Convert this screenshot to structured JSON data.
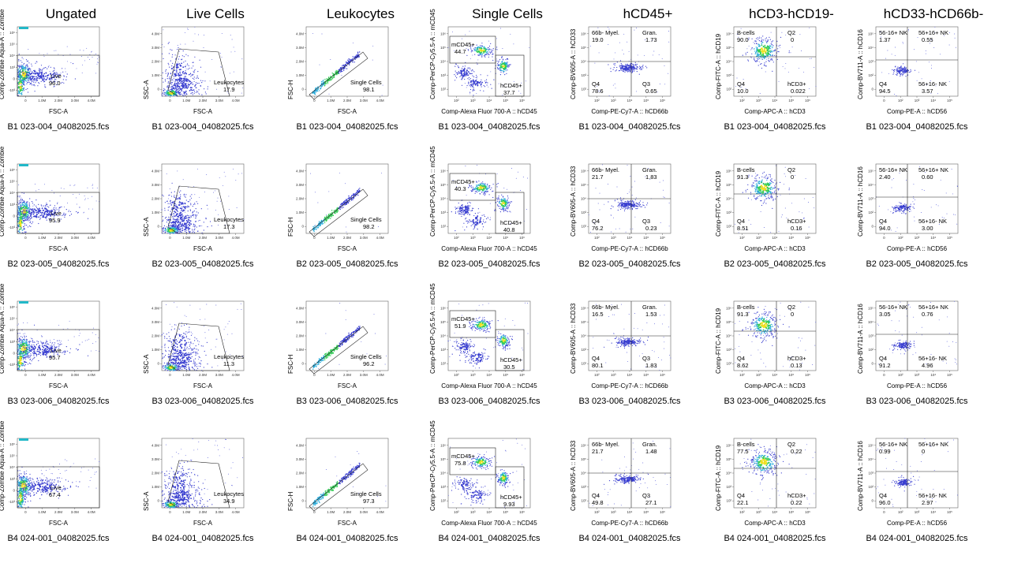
{
  "chart_data": {
    "type": "scatter",
    "description_type": "flow_cytometry_gating_grid",
    "columns": [
      {
        "title": "Ungated",
        "xlabel": "FSC-A",
        "ylabel": "Comp-Zombie Aqua-A :: Zombie",
        "kind": "live",
        "xticks": [
          "0",
          "1.0M",
          "2.0M",
          "3.0M",
          "4.0M"
        ],
        "yticks": [
          "-10³",
          "0",
          "10³",
          "10⁴",
          "10⁵",
          "10⁶"
        ]
      },
      {
        "title": "Live Cells",
        "xlabel": "FSC-A",
        "ylabel": "SSC-A",
        "kind": "leuko",
        "xticks": [
          "0",
          "1.0M",
          "2.0M",
          "3.0M",
          "4.0M"
        ],
        "yticks": [
          "0",
          "1.0M",
          "2.0M",
          "3.0M",
          "4.0M"
        ]
      },
      {
        "title": "Leukocytes",
        "xlabel": "FSC-A",
        "ylabel": "FSC-H",
        "kind": "single",
        "xticks": [
          "0",
          "1.0M",
          "2.0M",
          "3.0M",
          "4.0M"
        ],
        "yticks": [
          "0",
          "1.0M",
          "2.0M",
          "3.0M",
          "4.0M"
        ]
      },
      {
        "title": "Single Cells",
        "xlabel": "Comp-Alexa Fluor 700-A :: hCD45",
        "ylabel": "Comp-PerCP-Cy5.5-A :: mCD45",
        "kind": "cd45",
        "xticks": [
          "10²",
          "10³",
          "10⁴",
          "10⁵",
          "10⁶"
        ],
        "yticks": [
          "10²",
          "10³",
          "10⁴",
          "10⁵",
          "10⁶"
        ]
      },
      {
        "title": "hCD45+",
        "xlabel": "Comp-PE-Cy7-A :: hCD66b",
        "ylabel": "Comp-BV605-A :: hCD33",
        "kind": "quad33",
        "xticks": [
          "10²",
          "10³",
          "10⁴",
          "10⁵",
          "10⁶"
        ],
        "yticks": [
          "10²",
          "10³",
          "10⁴",
          "10⁵",
          "10⁶"
        ]
      },
      {
        "title": "hCD3-hCD19-",
        "xlabel": "Comp-APC-A :: hCD3",
        "ylabel": "Comp-FITC-A :: hCD19",
        "kind": "quad19",
        "xticks": [
          "10²",
          "10³",
          "10⁴",
          "10⁵",
          "10⁶"
        ],
        "yticks": [
          "10²",
          "10³",
          "10⁴",
          "10⁵",
          "10⁶"
        ]
      },
      {
        "title": "hCD33-hCD66b-",
        "xlabel": "Comp-PE-A :: hCD56",
        "ylabel": "Comp-BV711-A :: hCD16",
        "kind": "quad16",
        "xticks": [
          "0",
          "10²",
          "10³",
          "10⁴",
          "10⁵"
        ],
        "yticks": [
          "0",
          "10²",
          "10³",
          "10⁴",
          "10⁵"
        ]
      }
    ],
    "gate_names": {
      "live": "Live",
      "leuko": "Leukocytes",
      "single": "Single Cells",
      "cd45": [
        "mCD45+",
        "hCD45+"
      ],
      "quad33": [
        "66b- Myel.",
        "Gran.",
        "Q4",
        "Q3"
      ],
      "quad19": [
        "B-cells",
        "Q2",
        "Q4",
        "hCD3+"
      ],
      "quad16": [
        "56-16+ NK",
        "56+16+ NK",
        "Q4",
        "56+16- NK"
      ]
    },
    "rows": [
      {
        "file": "B1 023-004_04082025.fcs",
        "values": {
          "live": "96.0",
          "leuko": "17.9",
          "single": "98.1",
          "cd45": [
            "44.7",
            "37.7"
          ],
          "quad33": [
            "19.0",
            "1.73",
            "78.6",
            "0.65"
          ],
          "quad19": [
            "90.0",
            "0",
            "10.0",
            "0.022"
          ],
          "quad16": [
            "1.37",
            "0.55",
            "94.5",
            "3.57"
          ]
        }
      },
      {
        "file": "B2 023-005_04082025.fcs",
        "values": {
          "live": "95.9",
          "leuko": "17.3",
          "single": "98.2",
          "cd45": [
            "40.3",
            "40.8"
          ],
          "quad33": [
            "21.7",
            "1.83",
            "76.2",
            "0.23"
          ],
          "quad19": [
            "91.3",
            "0",
            "8.51",
            "0.16"
          ],
          "quad16": [
            "2.40",
            "0.60",
            "94.0",
            "3.00"
          ]
        }
      },
      {
        "file": "B3 023-006_04082025.fcs",
        "values": {
          "live": "95.7",
          "leuko": "11.3",
          "single": "96.2",
          "cd45": [
            "51.9",
            "30.5"
          ],
          "quad33": [
            "16.5",
            "1.53",
            "80.1",
            "1.83"
          ],
          "quad19": [
            "91.3",
            "0",
            "8.62",
            "0.13"
          ],
          "quad16": [
            "3.05",
            "0.76",
            "91.2",
            "4.96"
          ]
        }
      },
      {
        "file": "B4 024-001_04082025.fcs",
        "values": {
          "live": "67.4",
          "leuko": "34.9",
          "single": "97.3",
          "cd45": [
            "75.8",
            "9.93"
          ],
          "quad33": [
            "21.7",
            "1.48",
            "49.8",
            "27.1"
          ],
          "quad19": [
            "77.5",
            "0.22",
            "22.1",
            "0.22"
          ],
          "quad16": [
            "0.99",
            "0",
            "96.0",
            "2.97"
          ]
        }
      }
    ],
    "legend": "none",
    "grid": false
  }
}
